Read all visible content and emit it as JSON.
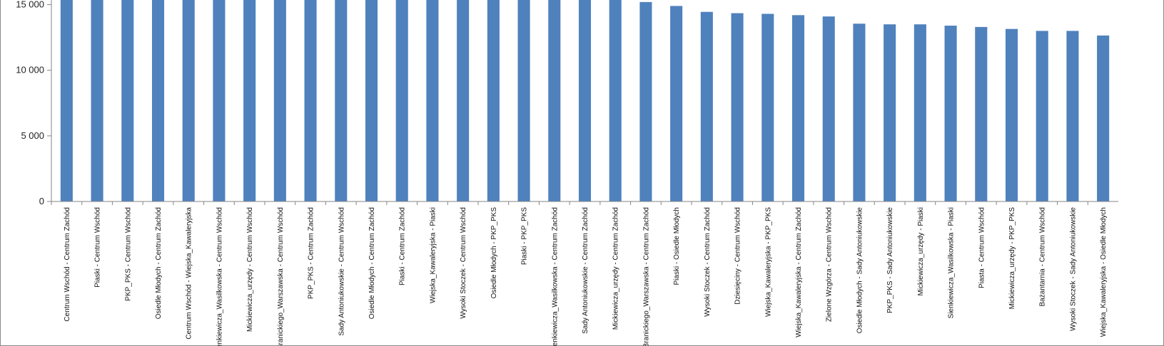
{
  "chart_data": {
    "type": "bar",
    "categories": [
      "Centrum Wschód - Centrum Zachód",
      "Piaski - Centrum Wschód",
      "PKP_PKS - Centrum Wschód",
      "Osiedle Młodych - Centrum Zachód",
      "Centrum Wschód - Wiejska_Kawaleryjska",
      "Sienkiewicza_Wasilkowska - Centrum Wschód",
      "Mickiewicza_urzędy - Centrum Wschód",
      "Branickiego_Warszawska - Centrum Wschód",
      "PKP_PKS - Centrum Zachód",
      "Sady Antoniukowskie - Centrum Wschód",
      "Osiedle Młodych - Centrum Zachód",
      "Piaski - Centrum Zachód",
      "Wiejska_Kawaleryjska - Piaski",
      "Wysoki Stoczek - Centrum Wschód",
      "Osiedle Młodych - PKP_PKS",
      "Piaski - PKP_PKS",
      "Sienkiewicza_Wasilkowska - Centrum Zachód",
      "Sady Antoniukowskie - Centrum Zachód",
      "Mickiewicza_urzędy - Centrum Zachód",
      "Branickiego_Warszawska - Centrum Zachód",
      "Piaski - Osiedle Młodych",
      "Wysoki Stoczek - Centrum Zachód",
      "Dziesięciny - Centrum Wschód",
      "Wiejska_Kawaleryjska - PKP_PKS",
      "Wiejska_Kawaleryjska - Centrum Zachód",
      "Zielone Wzgórza - Centrum Wschód",
      "Osiedle Młodych - Sady Antoniukowskie",
      "PKP_PKS - Sady Antoniukowskie",
      "Mickiewicza_urzędy - Piaski",
      "Sienkiewicza_Wasilkowska - Piaski",
      "Piasta - Centrum Wschód",
      "Mickiewicza_urzędy - PKP_PKS",
      "Bażantarnia - Centrum Wschód",
      "Wysoki Stoczek - Sady Antoniukowskie",
      "Wiejska_Kawaleryjska - Osiedle Młodych"
    ],
    "values": [
      15500,
      15500,
      15500,
      15500,
      15500,
      15500,
      15500,
      15500,
      15500,
      15500,
      15500,
      15500,
      15500,
      15500,
      15500,
      15500,
      15500,
      15500,
      15500,
      15200,
      14900,
      14450,
      14350,
      14300,
      14200,
      14100,
      13550,
      13500,
      13500,
      13400,
      13300,
      13150,
      13000,
      13000,
      12650
    ],
    "yticks": [
      "0",
      "5 000",
      "10 000",
      "15 000"
    ],
    "ytick_values": [
      0,
      5000,
      10000,
      15000
    ],
    "ylim": [
      0,
      15300
    ],
    "grid": false,
    "legend": "none",
    "colors": {
      "bar": "#4f81bd",
      "axis": "#868686"
    }
  }
}
